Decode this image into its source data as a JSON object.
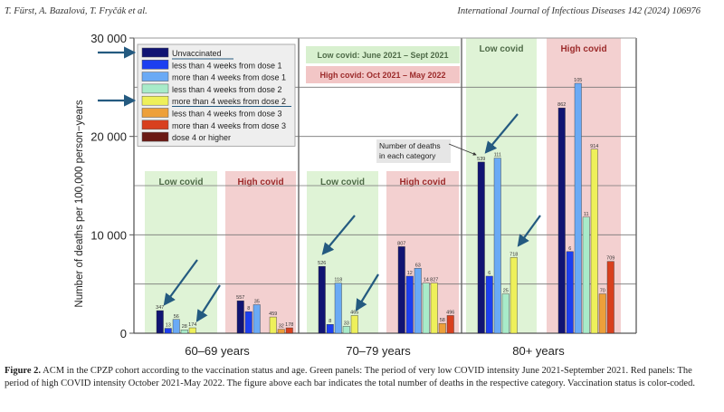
{
  "header": {
    "authors": "T. Fürst, A. Bazalová, T. Fryčák et al.",
    "journal": "International Journal of Infectious Diseases 142 (2024) 106976"
  },
  "caption": {
    "label": "Figure 2.",
    "text": "ACM in the CPZP cohort according to the vaccination status and age. Green panels: The period of very low COVID intensity June 2021-September 2021. Red panels: The period of high COVID intensity October 2021-May 2022. The figure above each bar indicates the total number of deaths in the respective category. Vaccination status is color-coded."
  },
  "chart_data": {
    "type": "bar",
    "title": "",
    "xlabel": "",
    "ylabel": "Number of deaths per 100,000 person−years",
    "ylim": [
      0,
      30000
    ],
    "yticks": [
      0,
      10000,
      20000,
      30000
    ],
    "ytick_labels": [
      "0",
      "10 000",
      "20 000",
      "30 000"
    ],
    "minor_gridlines": [
      5000,
      15000,
      25000
    ],
    "grid": true,
    "legend_position": "top-left",
    "categories": [
      "60–69 years",
      "70–79 years",
      "80+ years"
    ],
    "periods": [
      {
        "key": "low",
        "label": "Low covid",
        "color": "#dff3d6",
        "text_color": "#4f6b48"
      },
      {
        "key": "high",
        "label": "High covid",
        "color": "#f3d0d0",
        "text_color": "#9c2b2b"
      }
    ],
    "period_legend": [
      {
        "label": "Low covid: June 2021 – Sept 2021",
        "color": "#d8f0cf",
        "text_color": "#4f6b48"
      },
      {
        "label": "High covid: Oct 2021 – May 2022",
        "color": "#f2c6c6",
        "text_color": "#9c2b2b"
      }
    ],
    "series": [
      {
        "name": "Unvaccinated",
        "color": "#111473"
      },
      {
        "name": "less than 4 weeks from dose 1",
        "color": "#1c3ff0"
      },
      {
        "name": "more than 4 weeks from dose 1",
        "color": "#6aaaf5"
      },
      {
        "name": "less than 4 weeks from dose 2",
        "color": "#a8ebc9"
      },
      {
        "name": "more than 4 weeks from dose 2",
        "color": "#eef05a"
      },
      {
        "name": "less than 4 weeks from dose 3",
        "color": "#eda03a"
      },
      {
        "name": "more than 4 weeks from dose 3",
        "color": "#d8401e"
      },
      {
        "name": "dose 4 or higher",
        "color": "#6b1a14"
      }
    ],
    "groups": [
      {
        "category": "60–69 years",
        "period": "low",
        "bars": [
          {
            "series": 0,
            "value": 2300,
            "deaths": "347"
          },
          {
            "series": 1,
            "value": 500,
            "deaths": "13"
          },
          {
            "series": 2,
            "value": 1400,
            "deaths": "56"
          },
          {
            "series": 3,
            "value": 350,
            "deaths": "28"
          },
          {
            "series": 4,
            "value": 550,
            "deaths": "174"
          }
        ]
      },
      {
        "category": "60–69 years",
        "period": "high",
        "bars": [
          {
            "series": 0,
            "value": 3300,
            "deaths": "557"
          },
          {
            "series": 1,
            "value": 2200,
            "deaths": "8"
          },
          {
            "series": 2,
            "value": 2900,
            "deaths": "35"
          },
          {
            "series": 4,
            "value": 1650,
            "deaths": "459"
          },
          {
            "series": 5,
            "value": 400,
            "deaths": "32"
          },
          {
            "series": 6,
            "value": 550,
            "deaths": "178"
          }
        ]
      },
      {
        "category": "70–79 years",
        "period": "low",
        "bars": [
          {
            "series": 0,
            "value": 6800,
            "deaths": "526"
          },
          {
            "series": 1,
            "value": 900,
            "deaths": "8"
          },
          {
            "series": 2,
            "value": 5100,
            "deaths": "118"
          },
          {
            "series": 3,
            "value": 700,
            "deaths": "33"
          },
          {
            "series": 4,
            "value": 1800,
            "deaths": "465"
          }
        ]
      },
      {
        "category": "70–79 years",
        "period": "high",
        "bars": [
          {
            "series": 0,
            "value": 8800,
            "deaths": "807"
          },
          {
            "series": 1,
            "value": 5800,
            "deaths": "12"
          },
          {
            "series": 2,
            "value": 6600,
            "deaths": "63"
          },
          {
            "series": 3,
            "value": 5100,
            "deaths": "14"
          },
          {
            "series": 4,
            "value": 5100,
            "deaths": "827"
          },
          {
            "series": 5,
            "value": 1000,
            "deaths": "58"
          },
          {
            "series": 6,
            "value": 1800,
            "deaths": "496"
          }
        ]
      },
      {
        "category": "80+ years",
        "period": "low",
        "bars": [
          {
            "series": 0,
            "value": 17400,
            "deaths": "539"
          },
          {
            "series": 1,
            "value": 5800,
            "deaths": "6"
          },
          {
            "series": 2,
            "value": 17800,
            "deaths": "111"
          },
          {
            "series": 3,
            "value": 4000,
            "deaths": "25"
          },
          {
            "series": 4,
            "value": 7700,
            "deaths": "718"
          }
        ]
      },
      {
        "category": "80+ years",
        "period": "high",
        "bars": [
          {
            "series": 0,
            "value": 22900,
            "deaths": "862"
          },
          {
            "series": 1,
            "value": 8300,
            "deaths": "6"
          },
          {
            "series": 2,
            "value": 25400,
            "deaths": "105"
          },
          {
            "series": 3,
            "value": 11800,
            "deaths": "11"
          },
          {
            "series": 4,
            "value": 18700,
            "deaths": "914"
          },
          {
            "series": 5,
            "value": 4000,
            "deaths": "70"
          },
          {
            "series": 6,
            "value": 7300,
            "deaths": "709"
          }
        ]
      }
    ],
    "annotations": [
      {
        "text": "Number of deaths in each category",
        "points_to": "80+ years low covid Unvaccinated bar"
      }
    ],
    "highlight_arrows": [
      "Unvaccinated legend entry",
      "more than 4 weeks from dose 2 legend entry",
      "Unvaccinated bars in low covid panels",
      "more than 4 weeks from dose 2 bars in low covid panels"
    ],
    "arrow_color": "#245a80"
  }
}
